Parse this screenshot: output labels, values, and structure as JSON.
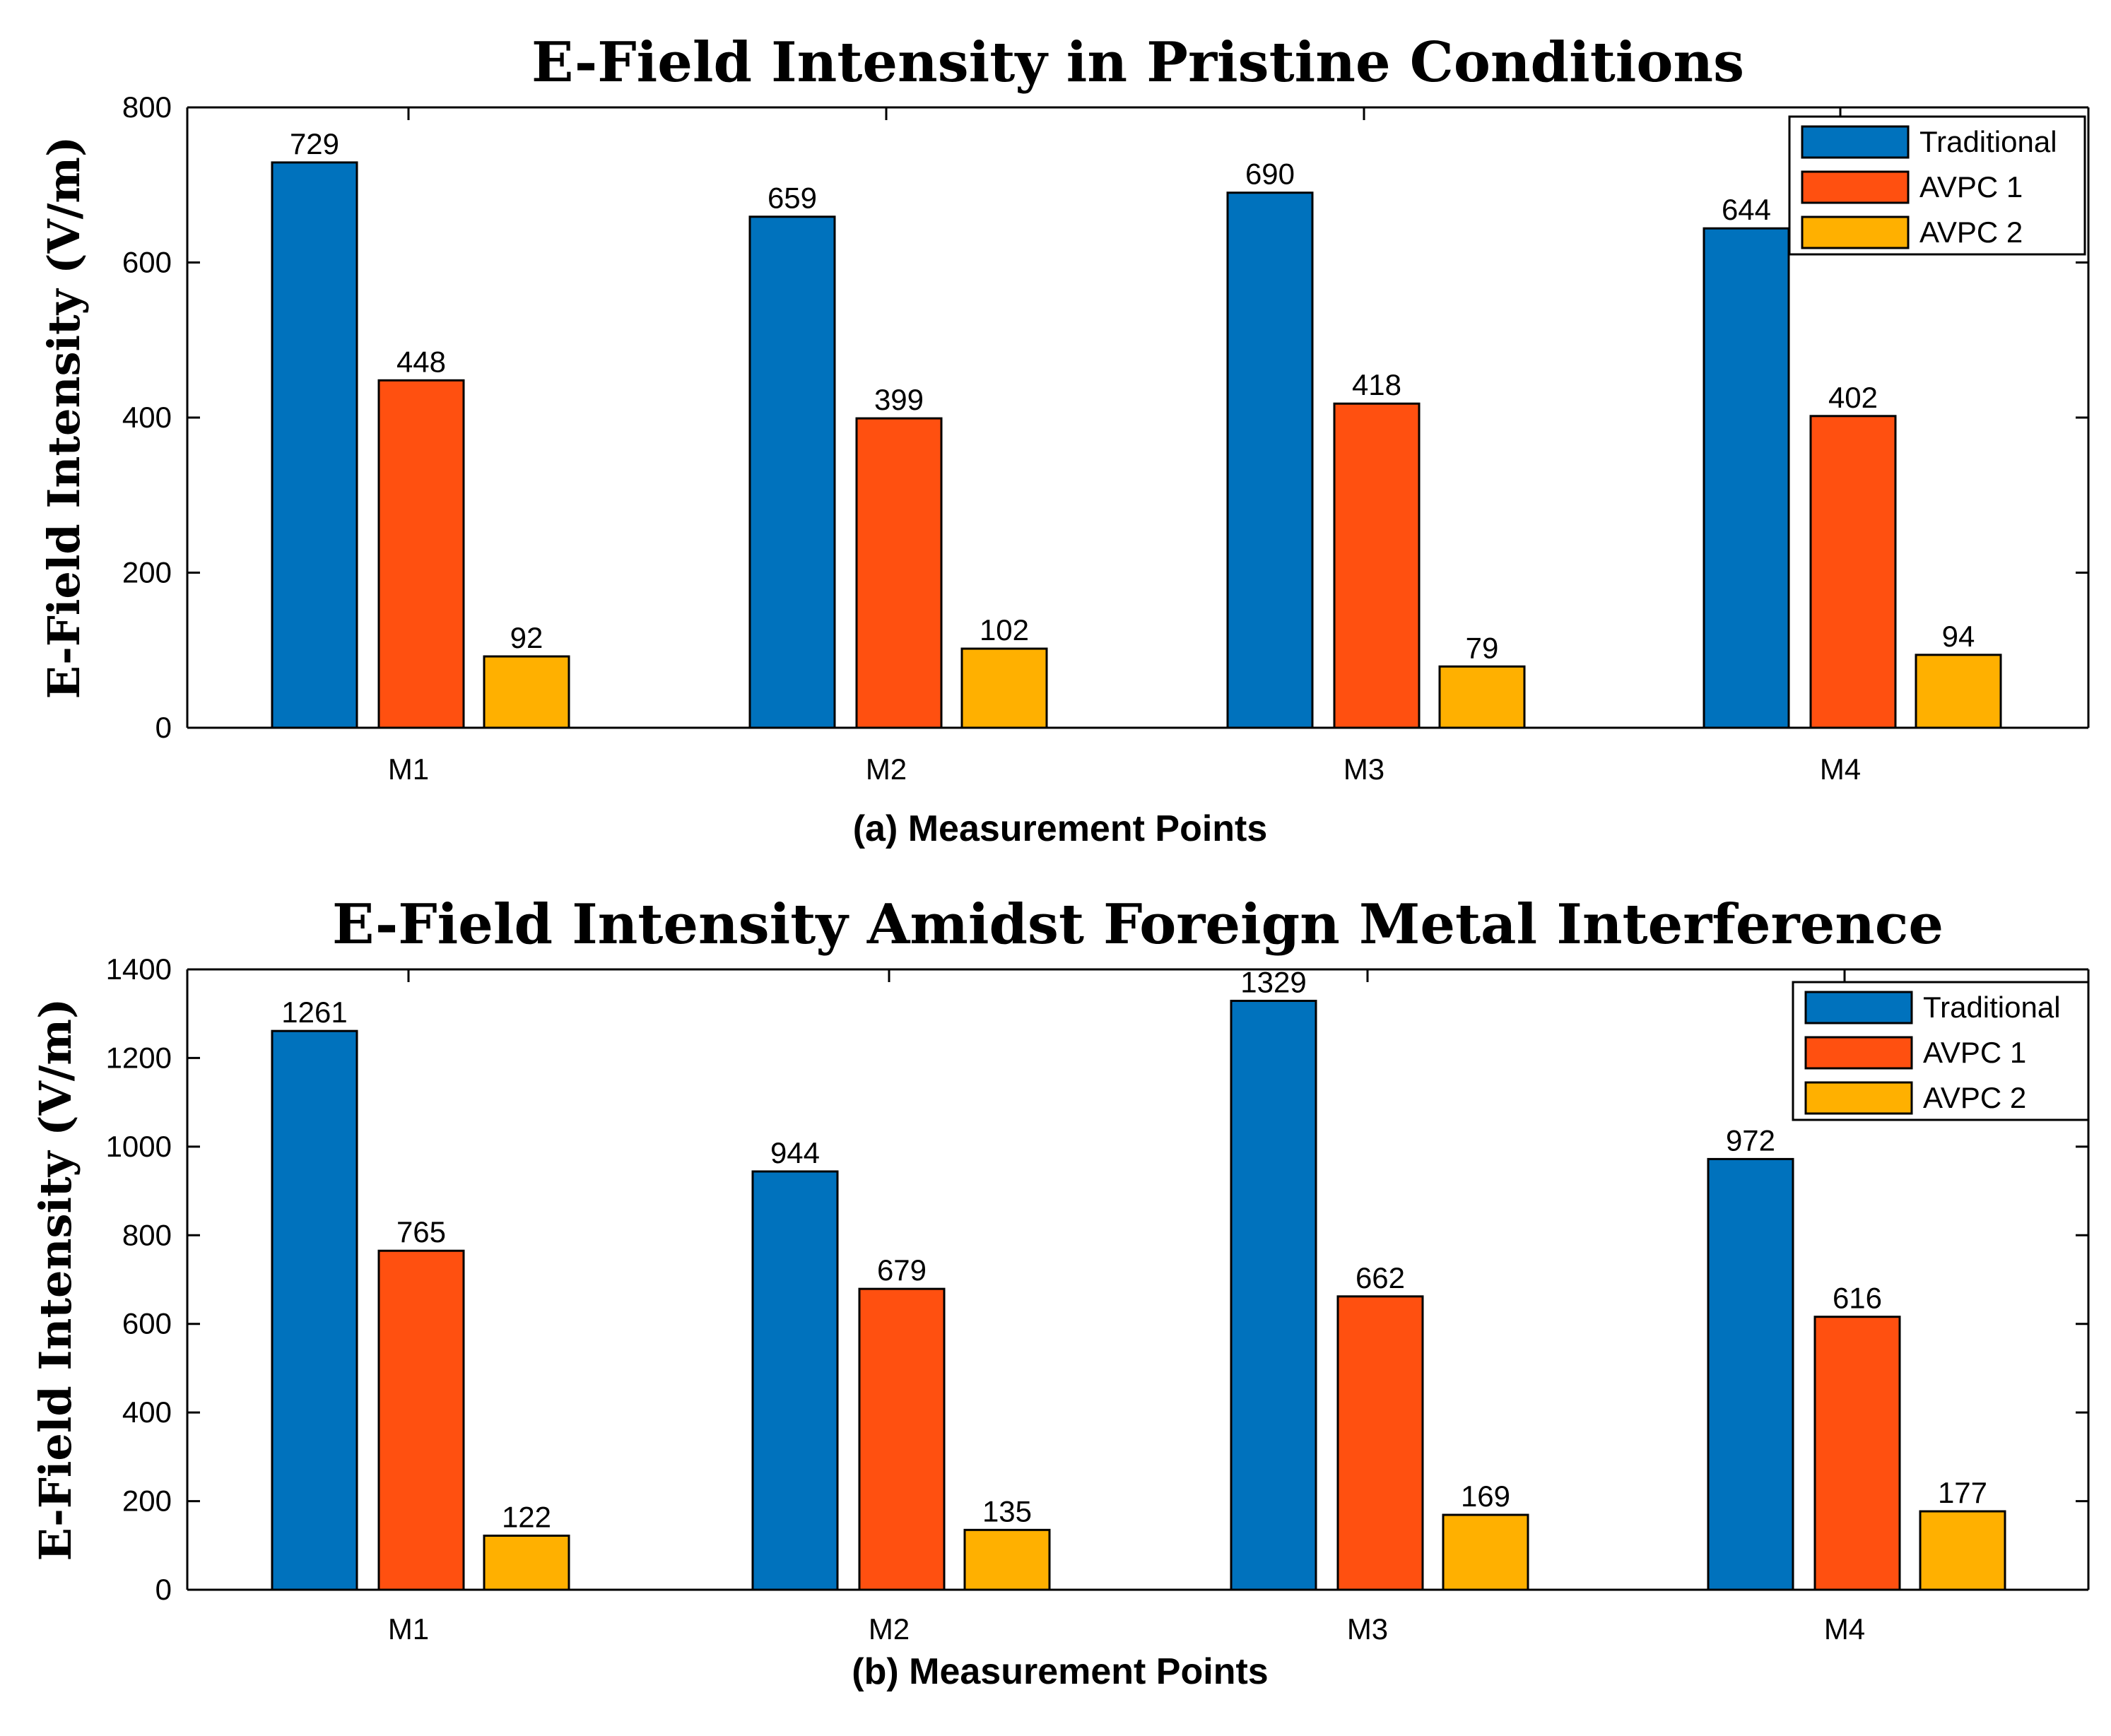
{
  "chart_data": [
    {
      "type": "bar",
      "title": "E-Field Intensity in Pristine Conditions",
      "xlabel": "(a)  Measurement Points",
      "ylabel": "E-Field Intensity (V/m)",
      "categories": [
        "M1",
        "M2",
        "M3",
        "M4"
      ],
      "ylim": [
        0,
        800
      ],
      "yticks": [
        0,
        200,
        400,
        600,
        800
      ],
      "legend": "top-right",
      "series": [
        {
          "name": "Traditional",
          "color": "#0072BD",
          "values": [
            729,
            659,
            690,
            644
          ]
        },
        {
          "name": "AVPC 1",
          "color": "#FF5010",
          "values": [
            448,
            399,
            418,
            402
          ]
        },
        {
          "name": "AVPC 2",
          "color": "#FFB000",
          "values": [
            92,
            102,
            79,
            94
          ]
        }
      ]
    },
    {
      "type": "bar",
      "title": "E-Field Intensity Amidst Foreign Metal Interference",
      "xlabel": "(b)  Measurement Points",
      "ylabel": "E-Field Intensity (V/m)",
      "categories": [
        "M1",
        "M2",
        "M3",
        "M4"
      ],
      "ylim": [
        0,
        1400
      ],
      "yticks": [
        0,
        200,
        400,
        600,
        800,
        1000,
        1200,
        1400
      ],
      "legend": "top-right",
      "series": [
        {
          "name": "Traditional",
          "color": "#0072BD",
          "values": [
            1261,
            944,
            1329,
            972
          ]
        },
        {
          "name": "AVPC 1",
          "color": "#FF5010",
          "values": [
            765,
            679,
            662,
            616
          ]
        },
        {
          "name": "AVPC 2",
          "color": "#FFB000",
          "values": [
            122,
            135,
            169,
            177
          ]
        }
      ]
    }
  ]
}
